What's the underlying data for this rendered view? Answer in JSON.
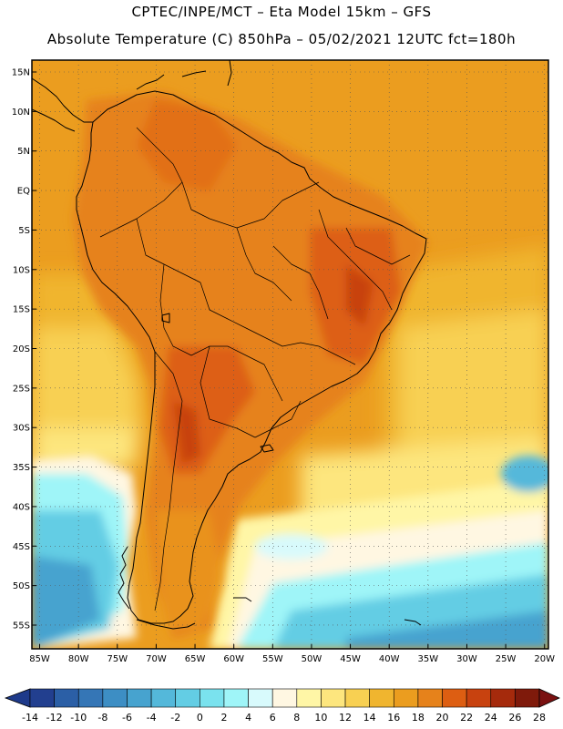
{
  "header": {
    "line1": "CPTEC/INPE/MCT –  Eta Model 15km – GFS",
    "line2": "Absolute Temperature (C) 850hPa – 05/02/2021 12UTC fct=180h"
  },
  "axes": {
    "lat_labels": [
      "15N",
      "10N",
      "5N",
      "EQ",
      "5S",
      "10S",
      "15S",
      "20S",
      "25S",
      "30S",
      "35S",
      "40S",
      "45S",
      "50S",
      "55S"
    ],
    "lat_values": [
      15,
      10,
      5,
      0,
      -5,
      -10,
      -15,
      -20,
      -25,
      -30,
      -35,
      -40,
      -45,
      -50,
      -55
    ],
    "lon_labels": [
      "85W",
      "80W",
      "75W",
      "70W",
      "65W",
      "60W",
      "55W",
      "50W",
      "45W",
      "40W",
      "35W",
      "30W",
      "25W",
      "20W"
    ],
    "lon_values": [
      -85,
      -80,
      -75,
      -70,
      -65,
      -60,
      -55,
      -50,
      -45,
      -40,
      -35,
      -30,
      -25,
      -20
    ],
    "lon_range": [
      -86,
      -19.5
    ],
    "lat_range": [
      -58,
      16.5
    ],
    "grid": "dotted"
  },
  "colorbar": {
    "labels": [
      "-14",
      "-12",
      "-10",
      "-8",
      "-6",
      "-4",
      "-2",
      "0",
      "2",
      "4",
      "6",
      "8",
      "10",
      "12",
      "14",
      "16",
      "18",
      "20",
      "22",
      "24",
      "26",
      "28"
    ],
    "colors": [
      "#223f8f",
      "#2b5fa6",
      "#3576b6",
      "#3d8ec4",
      "#47a3cf",
      "#54b8da",
      "#63cde4",
      "#7ae2ee",
      "#9ff5f8",
      "#d8fafc",
      "#fff7e2",
      "#fff6a6",
      "#fde67e",
      "#f8d052",
      "#f0b52f",
      "#eb9d1f",
      "#e6821b",
      "#dd5e12",
      "#c8420f",
      "#a52a0c",
      "#7f1a0b"
    ],
    "under_color": "#1e3a8a",
    "over_color": "#7a1010"
  },
  "colors": {
    "land_warm": "#e6821b",
    "ocean_warm": "#eb9d1f",
    "subtropics": "#f8d052",
    "cold_south": "#54b8da",
    "hot_core": "#c8420f"
  }
}
